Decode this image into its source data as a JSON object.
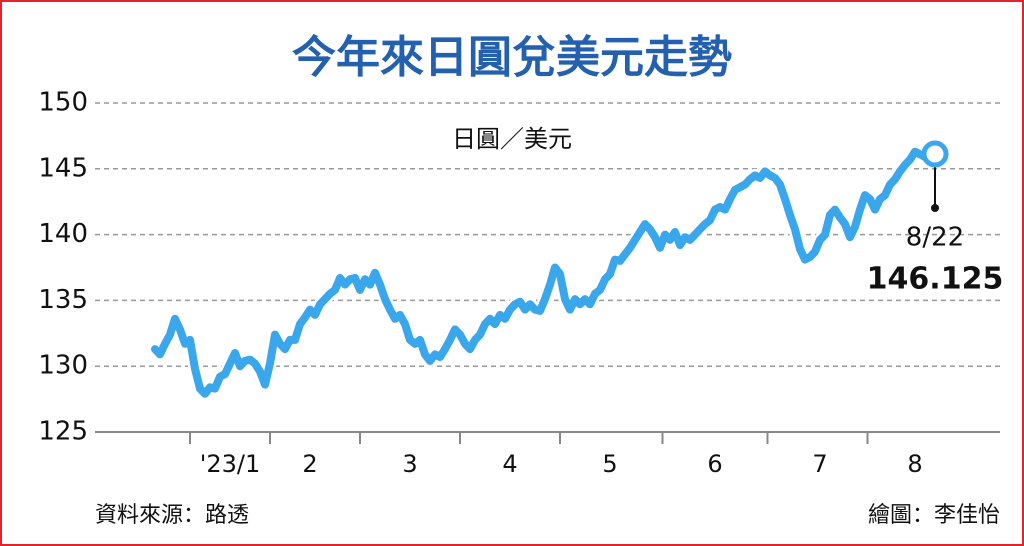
{
  "chart_data": {
    "type": "line",
    "title": "今年來日圓兌美元走勢",
    "y_label": "日圓／美元",
    "categories": [
      null,
      null,
      null,
      null,
      null,
      null,
      null,
      null,
      null,
      null,
      null,
      null,
      null,
      null,
      null,
      "'23/1",
      null,
      null,
      null,
      null,
      null,
      null,
      null,
      null,
      null,
      null,
      null,
      null,
      null,
      null,
      null,
      "2",
      null,
      null,
      null,
      null,
      null,
      null,
      null,
      null,
      null,
      null,
      null,
      null,
      null,
      null,
      null,
      null,
      null,
      null,
      null,
      "3",
      null,
      null,
      null,
      null,
      null,
      null,
      null,
      null,
      null,
      null,
      null,
      null,
      null,
      null,
      null,
      null,
      null,
      null,
      null,
      "4",
      null,
      null,
      null,
      null,
      null,
      null,
      null,
      null,
      null,
      null,
      null,
      null,
      null,
      null,
      null,
      null,
      null,
      null,
      null,
      "5",
      null,
      null,
      null,
      null,
      null,
      null,
      null,
      null,
      null,
      null,
      null,
      null,
      null,
      null,
      null,
      null,
      null,
      null,
      null,
      null,
      "6",
      null,
      null,
      null,
      null,
      null,
      null,
      null,
      null,
      null,
      null,
      null,
      null,
      null,
      null,
      null,
      null,
      null,
      null,
      null,
      null,
      "7",
      null,
      null,
      null,
      null,
      null,
      null,
      null,
      null,
      null,
      null,
      null,
      null,
      null,
      null,
      null,
      null,
      null,
      null,
      "8",
      null,
      null,
      null,
      null
    ],
    "series": [
      {
        "color": "#3aa6ec",
        "values": [
          131.3,
          130.9,
          131.7,
          132.4,
          133.6,
          132.8,
          131.7,
          132,
          129.8,
          128.3,
          127.9,
          128.4,
          128.3,
          129.2,
          129.4,
          130.2,
          131,
          130,
          130.4,
          130.5,
          130.2,
          129.6,
          128.6,
          130.2,
          132.4,
          131.7,
          131.3,
          132,
          132,
          133.2,
          133.7,
          134.3,
          133.9,
          134.7,
          135.1,
          135.5,
          135.8,
          136.7,
          136.2,
          136.6,
          136.7,
          135.8,
          136.6,
          136.2,
          137.1,
          136.2,
          135.1,
          134.3,
          133.6,
          133.9,
          133.2,
          132,
          131.7,
          132,
          130.9,
          130.4,
          130.9,
          130.7,
          131.3,
          132,
          132.8,
          132.4,
          131.7,
          131.3,
          132,
          132.4,
          133.2,
          133.6,
          133.2,
          133.9,
          133.6,
          134.3,
          134.7,
          134.9,
          134.3,
          134.7,
          134.3,
          134.2,
          135.1,
          136.2,
          137.5,
          137,
          135.1,
          134.3,
          135.1,
          134.7,
          135.1,
          134.7,
          135.5,
          135.8,
          136.6,
          137,
          138.1,
          138,
          138.5,
          139,
          139.6,
          140.2,
          140.8,
          140.4,
          139.8,
          139,
          140,
          139.6,
          140.2,
          139.2,
          139.8,
          139.6,
          140,
          140.4,
          140.8,
          141.1,
          141.9,
          142.1,
          141.9,
          142.7,
          143.4,
          143.6,
          143.8,
          144.2,
          144.5,
          144.3,
          144.8,
          144.5,
          144.3,
          143.8,
          142.7,
          141.5,
          140.4,
          138.9,
          138.1,
          138.3,
          138.7,
          139.6,
          140,
          141.5,
          141.9,
          141.3,
          140.8,
          139.8,
          140.6,
          141.9,
          143,
          142.7,
          141.9,
          142.7,
          143,
          143.8,
          144.2,
          144.8,
          145.3,
          145.7,
          146.3,
          146.1,
          145.9,
          145.7,
          146.125
        ]
      }
    ],
    "annotation": "8/22",
    "ylim": [
      125,
      150
    ],
    "yticks": [
      125,
      130,
      135,
      140,
      145,
      150
    ],
    "grid": true
  },
  "footer": {
    "source": "資料來源：路透",
    "credit": "繪圖：李佳怡"
  }
}
